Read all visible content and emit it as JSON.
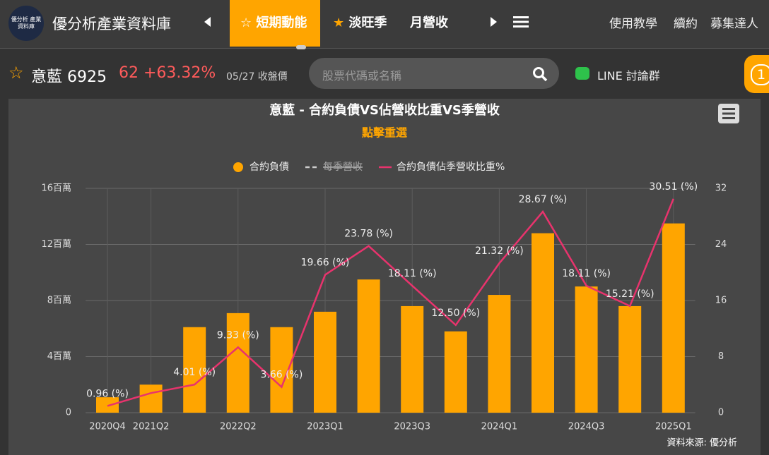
{
  "header": {
    "logo": "優分析 產業資料庫",
    "title": "優分析產業資料庫",
    "nav": [
      "短期動能",
      "淡旺季",
      "月營收"
    ],
    "links": [
      "使用教學",
      "續約",
      "募集達人"
    ]
  },
  "stock": {
    "name": "意藍",
    "code": "6925",
    "price": "62",
    "change": "+63.32%",
    "date": "05/27 收盤價"
  },
  "search": {
    "placeholder": "股票代碼或名稱"
  },
  "line_group": "LINE 討論群",
  "badge": "1",
  "chart_data": {
    "type": "bar_line",
    "title": "意藍 - 合約負債VS佔營收比重VS季營收",
    "subtitle": "點擊重選",
    "source": "資料來源: 優分析",
    "categories": [
      "2020Q4",
      "2021Q2",
      null,
      "2022Q2",
      null,
      "2023Q1",
      null,
      "2023Q3",
      null,
      "2024Q1",
      null,
      "2024Q3",
      null,
      "2025Q1"
    ],
    "series": [
      {
        "name": "合約負債",
        "color": "#ffa500",
        "type": "bar",
        "values": [
          1.1,
          2.0,
          6.1,
          7.1,
          6.1,
          7.2,
          9.5,
          7.6,
          5.8,
          8.4,
          12.8,
          9.0,
          7.6,
          13.5
        ]
      },
      {
        "name": "每季營收",
        "color": "#cccccc",
        "type": "line",
        "hidden": true
      },
      {
        "name": "合約負債佔季營收比重%",
        "color": "#e8336d",
        "type": "line",
        "axis": "y2",
        "values": [
          0.96,
          2.8,
          4.01,
          9.33,
          3.66,
          19.66,
          23.78,
          18.11,
          12.5,
          21.32,
          28.67,
          18.11,
          15.21,
          30.51
        ],
        "value_labels": [
          "0.96 (%)",
          null,
          "4.01 (%)",
          "9.33 (%)",
          "3.66 (%)",
          "19.66 (%)",
          "23.78 (%)",
          "18.11 (%)",
          "12.50 (%)",
          "21.32 (%)",
          "28.67 (%)",
          "18.11 (%)",
          "15.21 (%)",
          "30.51 (%)"
        ]
      }
    ],
    "ylim": [
      0,
      16
    ],
    "yticks": [
      0,
      {
        "value": 4,
        "label": "4百萬"
      },
      {
        "value": 8,
        "label": "8百萬"
      },
      {
        "value": 12,
        "label": "12百萬"
      },
      {
        "value": 16,
        "label": "16百萬"
      }
    ],
    "y2lim": [
      0,
      32
    ],
    "y2ticks": [
      0,
      8,
      16,
      24,
      32
    ],
    "grid": true
  }
}
